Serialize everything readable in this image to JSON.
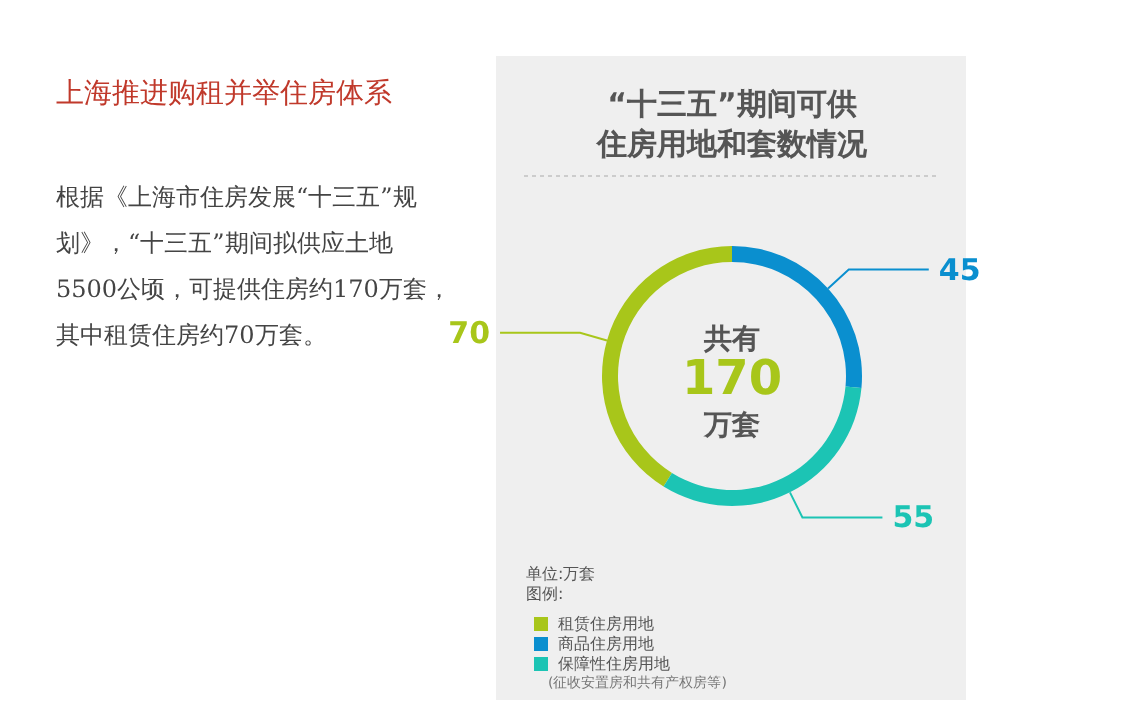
{
  "chart_data": {
    "type": "donut",
    "title": "“十三五”期间可供住房用地和套数情况",
    "categories": [
      "租赁住房用地",
      "商品住房用地",
      "保障性住房用地"
    ],
    "values": [
      70,
      45,
      55
    ],
    "colors": [
      "#a8c61a",
      "#0a8fcf",
      "#1cc4b4"
    ],
    "data_labels": true,
    "legend": "bottom left",
    "legend_title": "图例:",
    "annotations": [
      "上海推进购租并举住房体系",
      "根据《上海市住房发展“十三五”规划》，“十三五”期间拟供应土地5500公顷，可提供住房约170万套，其中租赁住房约70万套。",
      "共有",
      "170",
      "万套",
      "单位:万套",
      "(征收安置房和共有产权房等)"
    ]
  }
}
